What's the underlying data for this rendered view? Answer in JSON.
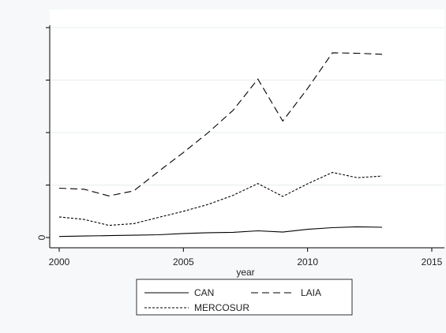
{
  "chart_data": {
    "type": "line",
    "title": "",
    "xlabel": "year",
    "ylabel": "",
    "xlim": [
      2000,
      2015
    ],
    "ylim": [
      0,
      1.0
    ],
    "x_ticks": [
      2000,
      2005,
      2010,
      2015
    ],
    "y_ticks": [
      0,
      0.25,
      0.5,
      0.75,
      1.0
    ],
    "y_tick_labels": [
      "0",
      "",
      "",
      "",
      ""
    ],
    "grid": true,
    "legend_position": "bottom",
    "x": [
      2000,
      2001,
      2002,
      2003,
      2004,
      2005,
      2006,
      2007,
      2008,
      2009,
      2010,
      2011,
      2012,
      2013
    ],
    "series": [
      {
        "name": "CAN",
        "dash": "solid",
        "values": [
          0.005,
          0.007,
          0.009,
          0.011,
          0.013,
          0.019,
          0.023,
          0.025,
          0.032,
          0.026,
          0.039,
          0.047,
          0.051,
          0.049
        ]
      },
      {
        "name": "LAIA",
        "dash": "dashed",
        "values": [
          0.235,
          0.23,
          0.198,
          0.222,
          0.315,
          0.405,
          0.5,
          0.606,
          0.755,
          0.555,
          0.71,
          0.88,
          0.878,
          0.873
        ]
      },
      {
        "name": "MERCOSUR",
        "dash": "dotted",
        "values": [
          0.098,
          0.086,
          0.058,
          0.066,
          0.096,
          0.125,
          0.158,
          0.201,
          0.257,
          0.196,
          0.256,
          0.31,
          0.285,
          0.293
        ]
      }
    ],
    "colors": {
      "line": "#000000",
      "grid": "#e6ecef",
      "plot_background": "#ffffff",
      "page_background": "#f6f8f9"
    }
  }
}
